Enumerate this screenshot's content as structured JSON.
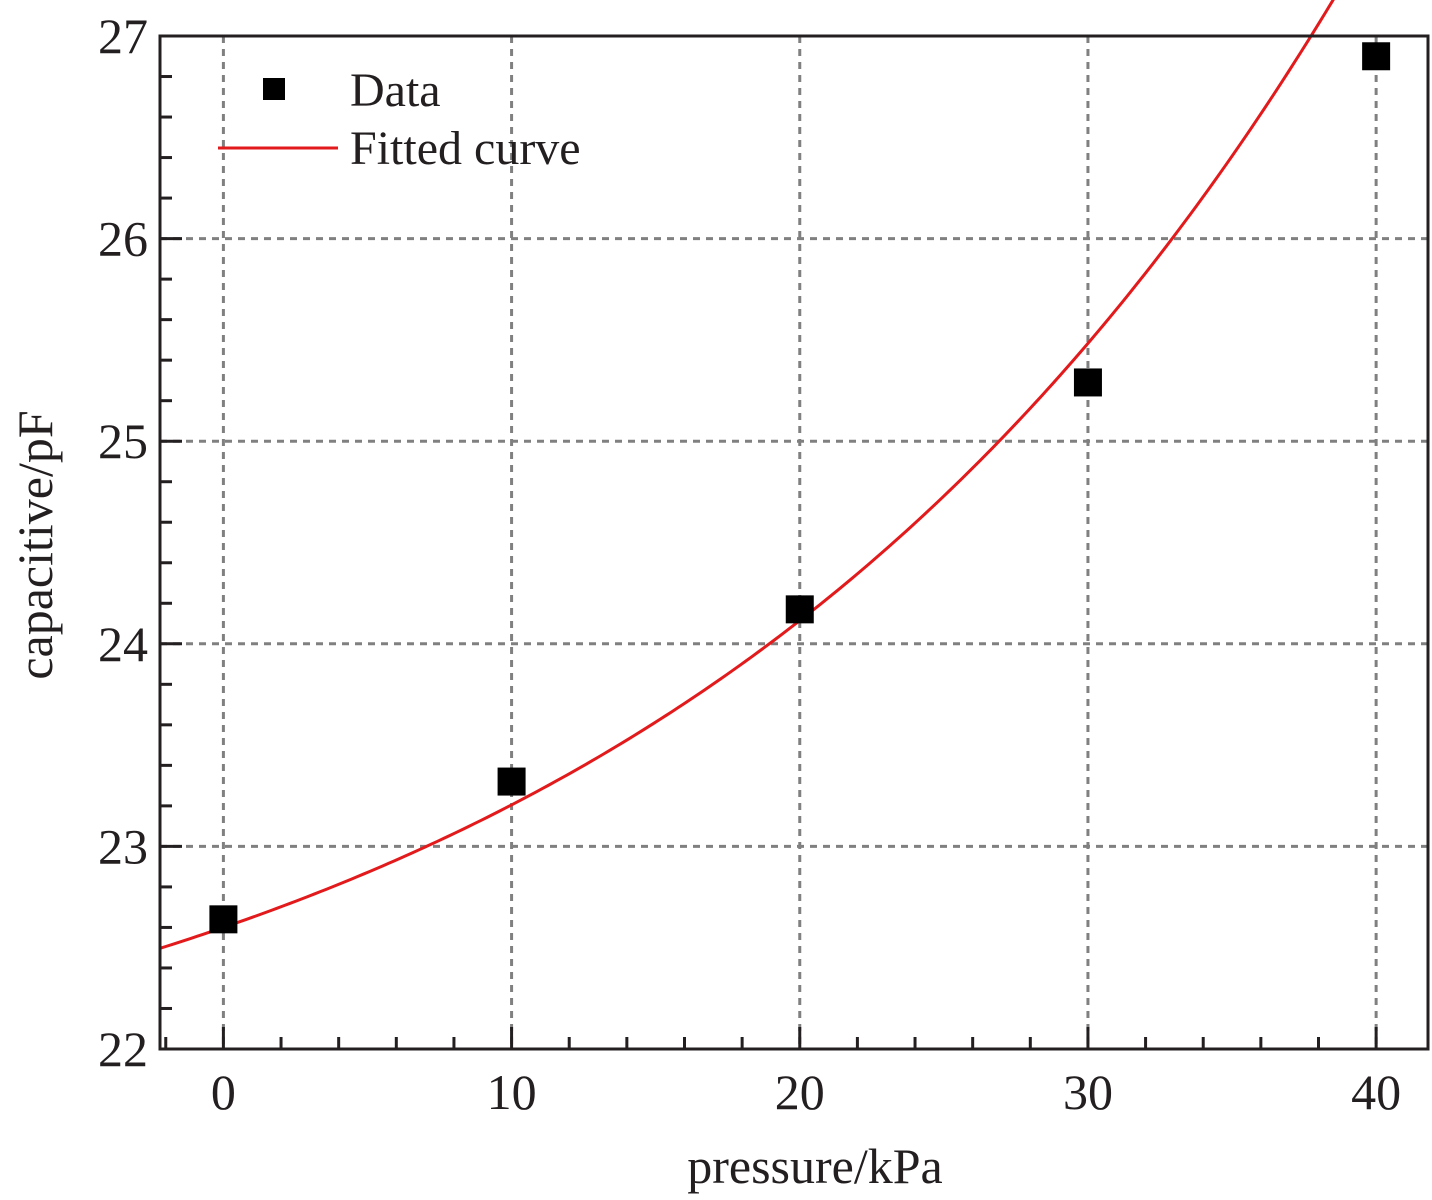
{
  "chart_data": {
    "type": "scatter",
    "xlabel": "pressure/kPa",
    "ylabel": "capacitive/pF",
    "xlim": [
      -2.2,
      41.8
    ],
    "ylim": [
      22,
      27
    ],
    "xticks": [
      "0",
      "10",
      "20",
      "30",
      "40"
    ],
    "yticks": [
      "22",
      "23",
      "24",
      "25",
      "26",
      "27"
    ],
    "grid": true,
    "legend_position": "top-left",
    "series": [
      {
        "name": "Data",
        "kind": "scatter",
        "marker": "square",
        "color": "#000000",
        "points": [
          {
            "x": 0,
            "y": 22.64
          },
          {
            "x": 10,
            "y": 23.32
          },
          {
            "x": 20,
            "y": 24.17
          },
          {
            "x": 30,
            "y": 25.29
          },
          {
            "x": 40,
            "y": 26.9
          }
        ]
      },
      {
        "name": "Fitted curve",
        "kind": "line",
        "color": "#e31a1c",
        "model": "y = 21.4 + 1.2 * exp(x / 24.5)",
        "x_range": [
          -2.2,
          40.6
        ]
      }
    ]
  }
}
